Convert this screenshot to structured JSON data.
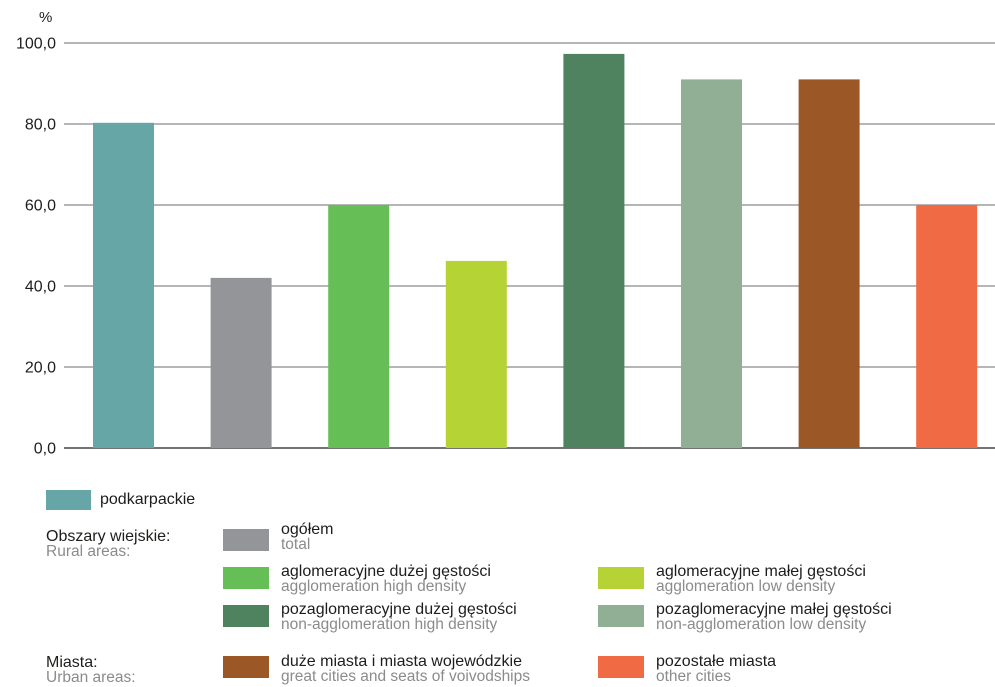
{
  "chart_data": {
    "type": "bar",
    "ylabel": "%",
    "ylim": [
      0,
      100
    ],
    "yticks": [
      {
        "value": 0,
        "label": "0,0"
      },
      {
        "value": 20,
        "label": "20,0"
      },
      {
        "value": 40,
        "label": "40,0"
      },
      {
        "value": 60,
        "label": "60,0"
      },
      {
        "value": 80,
        "label": "80,0"
      },
      {
        "value": 100,
        "label": "100,0"
      }
    ],
    "grid": true,
    "categories": [
      "podkarpackie",
      "ogółem",
      "aglomeracyjne dużej gęstości",
      "aglomeracyjne małej gęstości",
      "pozaglomeracyjne dużej gęstości",
      "pozaglomeracyjne małej gęstości",
      "duże miasta i miasta wojewódzkie",
      "pozostałe miasta"
    ],
    "values": [
      80.3,
      42.0,
      60.0,
      46.2,
      97.3,
      91.0,
      91.0,
      60.0
    ],
    "colors": [
      "#67a6a7",
      "#939598",
      "#66bf56",
      "#b5d334",
      "#4f825f",
      "#90af95",
      "#9b5726",
      "#f06a43"
    ]
  },
  "legend": {
    "total": {
      "pl": "podkarpackie",
      "color": "#67a6a7"
    },
    "rural_group": {
      "pl": "Obszary wiejskie:",
      "en": "Rural areas:"
    },
    "urban_group": {
      "pl": "Miasta:",
      "en": "Urban areas:"
    },
    "items": [
      {
        "pl": "ogółem",
        "en": "total",
        "color": "#939598"
      },
      {
        "pl": "aglomeracyjne dużej gęstości",
        "en": "agglomeration high density",
        "color": "#66bf56"
      },
      {
        "pl": "aglomeracyjne małej gęstości",
        "en": "agglomeration low density",
        "color": "#b5d334"
      },
      {
        "pl": "pozaglomeracyjne dużej gęstości",
        "en": "non-agglomeration high density",
        "color": "#4f825f"
      },
      {
        "pl": "pozaglomeracyjne małej gęstości",
        "en": "non-agglomeration low density",
        "color": "#90af95"
      },
      {
        "pl": "duże miasta i miasta wojewódzkie",
        "en": "great cities and seats of voivodships",
        "color": "#9b5726"
      },
      {
        "pl": "pozostałe miasta",
        "en": "other cities",
        "color": "#f06a43"
      }
    ]
  }
}
